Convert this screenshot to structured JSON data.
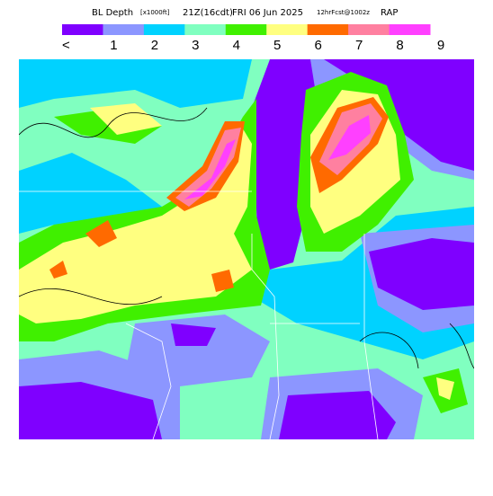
{
  "header": {
    "title": "BL Depth",
    "units": "[x1000ft]",
    "valid": "21Z(16cdt)",
    "date": "FRI 06 Jun 2025",
    "forecast": "12hrFcst@1002z",
    "model": "RAP"
  },
  "legend": {
    "colors": [
      "#7f00ff",
      "#8c96ff",
      "#00d2ff",
      "#80ffc0",
      "#40f000",
      "#ffff80",
      "#ff6a00",
      "#ff80a0",
      "#ff40ff"
    ],
    "labels": [
      "<",
      "1",
      "2",
      "3",
      "4",
      "5",
      "6",
      "7",
      "8",
      "9"
    ]
  }
}
